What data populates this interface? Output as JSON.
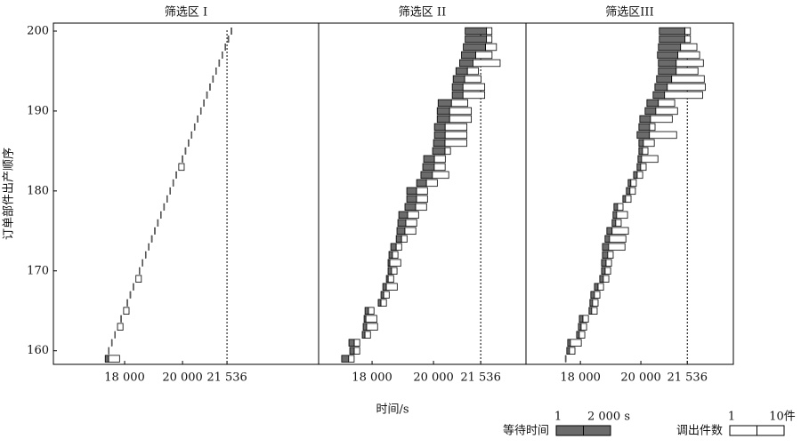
{
  "chart_data": {
    "type": "timeline",
    "ylabel": "订单部件出产顺序",
    "xlabel": "时间/s",
    "ylim": [
      158.3,
      201
    ],
    "yticks": [
      160,
      170,
      180,
      190,
      200
    ],
    "xticks": [
      {
        "value": 18000,
        "label": "18 000"
      },
      {
        "value": 20000,
        "label": "20 000"
      },
      {
        "value": 21536,
        "label": "21 536"
      }
    ],
    "vline": 21536,
    "orders": [
      159,
      160,
      161,
      162,
      163,
      164,
      165,
      166,
      167,
      168,
      169,
      170,
      171,
      172,
      173,
      174,
      175,
      176,
      177,
      178,
      179,
      180,
      181,
      182,
      183,
      184,
      185,
      186,
      187,
      188,
      189,
      190,
      191,
      192,
      193,
      194,
      195,
      196,
      197,
      198,
      199,
      200
    ],
    "legend": {
      "wait": {
        "label": "等待时间",
        "color": "#6b6b6b",
        "min": 1,
        "max": {
          "value": 2000,
          "label": "2 000 s"
        }
      },
      "count": {
        "label": "调出件数",
        "color": "#ffffff",
        "min": 1,
        "max": {
          "value": 10,
          "label": "10件"
        }
      }
    },
    "panels": [
      {
        "title": "筛选区 I",
        "xlim": [
          15540,
          24700
        ],
        "start": [
          17330,
          17435,
          17540,
          17650,
          17755,
          17860,
          17965,
          18075,
          18180,
          18285,
          18390,
          18495,
          18600,
          18710,
          18815,
          18920,
          19025,
          19130,
          19235,
          19345,
          19450,
          19555,
          19660,
          19765,
          19870,
          19980,
          20085,
          20190,
          20295,
          20400,
          20505,
          20615,
          20720,
          20825,
          20930,
          21035,
          21140,
          21250,
          21355,
          21460,
          21565,
          21670
        ],
        "wait": [
          120,
          0,
          0,
          0,
          0,
          0,
          0,
          0,
          0,
          0,
          0,
          0,
          0,
          0,
          0,
          0,
          0,
          0,
          0,
          0,
          0,
          0,
          0,
          0,
          0,
          0,
          0,
          0,
          0,
          0,
          0,
          0,
          0,
          0,
          0,
          0,
          0,
          0,
          0,
          0,
          0,
          0
        ],
        "count": [
          2,
          0,
          0,
          0,
          1,
          0,
          1,
          0,
          0,
          0,
          1,
          0,
          0,
          0,
          0,
          0,
          0,
          0,
          0,
          0,
          0,
          0,
          0,
          0,
          1,
          0,
          0,
          0,
          0,
          0,
          0,
          0,
          0,
          0,
          0,
          0,
          0,
          0,
          0,
          0,
          0,
          0
        ]
      },
      {
        "title": "筛选区 II",
        "xlim": [
          16260,
          23010
        ],
        "start": [
          17010,
          17275,
          17246,
          17680,
          17710,
          17740,
          17770,
          18200,
          18290,
          18350,
          18465,
          18520,
          18520,
          18550,
          18610,
          18785,
          18810,
          18840,
          18870,
          19070,
          19130,
          19130,
          19450,
          19590,
          19650,
          19680,
          19970,
          20000,
          20030,
          20030,
          20120,
          20120,
          20150,
          20610,
          20610,
          20640,
          20730,
          20850,
          20910,
          20970,
          21030,
          21030
        ],
        "wait": [
          230,
          145,
          175,
          90,
          115,
          60,
          115,
          90,
          90,
          115,
          60,
          115,
          60,
          115,
          175,
          175,
          260,
          260,
          290,
          350,
          320,
          320,
          320,
          375,
          375,
          350,
          405,
          375,
          350,
          350,
          405,
          405,
          435,
          350,
          350,
          375,
          375,
          435,
          465,
          725,
          695,
          695
        ],
        "count": [
          1,
          1,
          1,
          1,
          2,
          2,
          1,
          1,
          1,
          2,
          1,
          1,
          2,
          1,
          1,
          1,
          2,
          2,
          2,
          2,
          2,
          2,
          2,
          3,
          2,
          2,
          1,
          4,
          4,
          4,
          4,
          4,
          3,
          4,
          4,
          3,
          2,
          5,
          3,
          2,
          1,
          1
        ]
      },
      {
        "title": "筛选区III",
        "xlim": [
          16200,
          23060
        ],
        "start": [
          17495,
          17550,
          17580,
          17875,
          17935,
          17965,
          18285,
          18315,
          18345,
          18465,
          18640,
          18700,
          18700,
          18730,
          18730,
          18815,
          18875,
          19050,
          19080,
          19110,
          19405,
          19520,
          19580,
          19760,
          19875,
          19905,
          19935,
          19935,
          19875,
          19935,
          19965,
          20140,
          20200,
          20405,
          20465,
          20520,
          20580,
          20580,
          20550,
          20580,
          20610,
          20610
        ],
        "wait": [
          0,
          90,
          90,
          90,
          90,
          120,
          90,
          90,
          120,
          120,
          120,
          120,
          150,
          175,
          205,
          150,
          175,
          120,
          120,
          120,
          90,
          120,
          90,
          120,
          120,
          120,
          120,
          150,
          410,
          355,
          355,
          355,
          380,
          380,
          410,
          500,
          590,
          590,
          675,
          735,
          850,
          850
        ],
        "count": [
          0,
          1,
          2,
          1,
          1,
          1,
          1,
          1,
          1,
          1,
          1,
          1,
          1,
          1,
          3,
          3,
          3,
          1,
          2,
          1,
          1,
          1,
          1,
          1,
          1,
          3,
          1,
          2,
          5,
          1,
          4,
          4,
          3,
          7,
          7,
          6,
          4,
          5,
          4,
          3,
          1,
          1
        ]
      }
    ]
  }
}
